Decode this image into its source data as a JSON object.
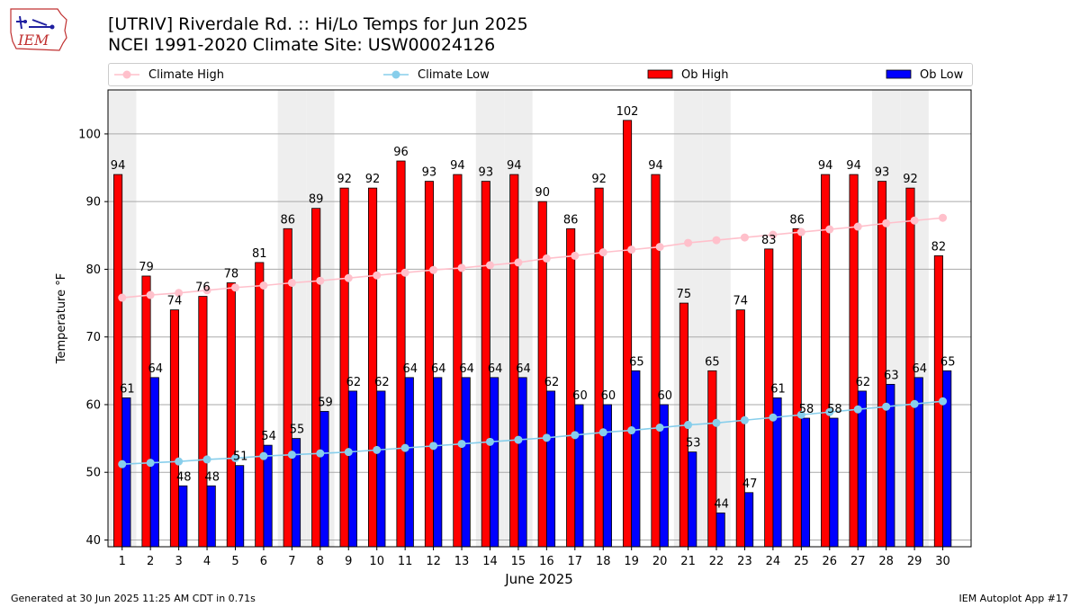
{
  "title_line1": "[UTRIV] Riverdale Rd.  :: Hi/Lo Temps for Jun 2025",
  "title_line2": "NCEI 1991-2020 Climate Site: USW00024126",
  "logo_text": "IEM",
  "footer_left": "Generated at 30 Jun 2025 11:25 AM CDT in 0.71s",
  "footer_right": "IEM Autoplot App #17",
  "colors": {
    "ob_high": "#ff0000",
    "ob_low": "#0000ff",
    "climate_high": "#ffc0cb",
    "climate_low": "#87ceeb",
    "weekend_band": "#eeeeee",
    "grid": "#aaaaaa"
  },
  "legend": [
    {
      "label": "Climate High",
      "kind": "line",
      "color": "#ffc0cb"
    },
    {
      "label": "Climate Low",
      "kind": "line",
      "color": "#87ceeb"
    },
    {
      "label": "Ob High",
      "kind": "bar",
      "color": "#ff0000"
    },
    {
      "label": "Ob Low",
      "kind": "bar",
      "color": "#0000ff"
    }
  ],
  "chart_data": {
    "type": "bar",
    "title": "[UTRIV] Riverdale Rd.  :: Hi/Lo Temps for Jun 2025",
    "subtitle": "NCEI 1991-2020 Climate Site: USW00024126",
    "xlabel": "June 2025",
    "ylabel": "Temperature °F",
    "ylim": [
      39,
      106.5
    ],
    "yticks": [
      40,
      50,
      60,
      70,
      80,
      90,
      100
    ],
    "grid": "horizontal",
    "legend_position": "top",
    "categories": [
      "1",
      "2",
      "3",
      "4",
      "5",
      "6",
      "7",
      "8",
      "9",
      "10",
      "11",
      "12",
      "13",
      "14",
      "15",
      "16",
      "17",
      "18",
      "19",
      "20",
      "21",
      "22",
      "23",
      "24",
      "25",
      "26",
      "27",
      "28",
      "29",
      "30"
    ],
    "weekend_days": [
      1,
      7,
      8,
      14,
      15,
      21,
      22,
      28,
      29
    ],
    "series": [
      {
        "name": "Ob High",
        "type": "bar",
        "values": [
          94,
          79,
          74,
          76,
          78,
          81,
          86,
          89,
          92,
          92,
          96,
          93,
          94,
          93,
          94,
          90,
          86,
          92,
          102,
          94,
          75,
          65,
          74,
          83,
          86,
          94,
          94,
          93,
          92,
          82
        ]
      },
      {
        "name": "Ob Low",
        "type": "bar",
        "values": [
          61,
          64,
          48,
          48,
          51,
          54,
          55,
          59,
          62,
          62,
          64,
          64,
          64,
          64,
          64,
          62,
          60,
          60,
          65,
          60,
          53,
          44,
          47,
          61,
          58,
          58,
          62,
          63,
          64,
          65
        ]
      },
      {
        "name": "Climate High",
        "type": "line",
        "values": [
          75.8,
          76.2,
          76.5,
          76.9,
          77.3,
          77.6,
          78.0,
          78.3,
          78.7,
          79.1,
          79.5,
          79.9,
          80.2,
          80.6,
          81.0,
          81.6,
          82.0,
          82.5,
          82.9,
          83.3,
          83.9,
          84.3,
          84.7,
          85.1,
          85.5,
          85.9,
          86.3,
          86.8,
          87.2,
          87.6
        ]
      },
      {
        "name": "Climate Low",
        "type": "line",
        "values": [
          51.2,
          51.4,
          51.6,
          51.9,
          52.1,
          52.4,
          52.6,
          52.8,
          53.0,
          53.3,
          53.6,
          53.9,
          54.2,
          54.5,
          54.8,
          55.1,
          55.5,
          55.9,
          56.2,
          56.6,
          57.0,
          57.3,
          57.7,
          58.1,
          58.5,
          58.9,
          59.3,
          59.7,
          60.1,
          60.5
        ]
      }
    ],
    "data_labels": {
      "ob_high": [
        "94",
        "79",
        "74",
        "76",
        "78",
        "81",
        "86",
        "89",
        "92",
        "92",
        "96",
        "93",
        "94",
        "93",
        "94",
        "90",
        "86",
        "92",
        "102",
        "94",
        "75",
        "65",
        "74",
        "83",
        "86",
        "94",
        "94",
        "93",
        "92",
        "82"
      ],
      "ob_low": [
        "61",
        "64",
        "48",
        "48",
        "51",
        "54",
        "55",
        "59",
        "62",
        "62",
        "64",
        "64",
        "64",
        "64",
        "64",
        "62",
        "60",
        "60",
        "65",
        "60",
        "53",
        "44",
        "47",
        "61",
        "58",
        "58",
        "62",
        "63",
        "64",
        "65"
      ]
    }
  }
}
